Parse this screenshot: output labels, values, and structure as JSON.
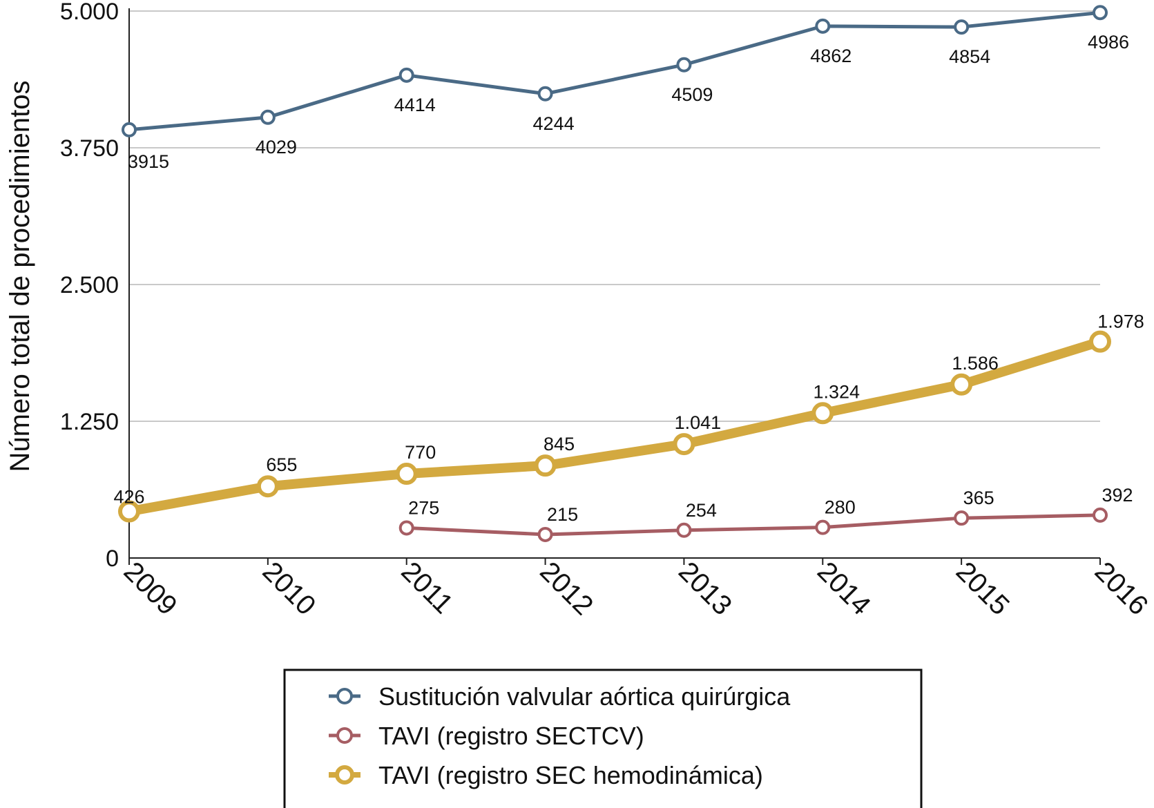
{
  "chart_data": {
    "type": "line",
    "title": "",
    "xlabel": "",
    "ylabel": "Número total de procedimientos",
    "categories": [
      "2009",
      "2010",
      "2011",
      "2012",
      "2013",
      "2014",
      "2015",
      "2016"
    ],
    "ylim": [
      0,
      5000
    ],
    "yticks": [
      0,
      1250,
      2500,
      3750,
      5000
    ],
    "ytick_labels": [
      "0",
      "1.250",
      "2.500",
      "3.750",
      "5.000"
    ],
    "grid": true,
    "legend_position": "bottom-center",
    "series": [
      {
        "name": "Sustitución valvular aórtica quirúrgica",
        "color": "#4a6a86",
        "values": [
          3915,
          4029,
          4414,
          4244,
          4509,
          4862,
          4854,
          4986
        ],
        "labels": [
          "3915",
          "4029",
          "4414",
          "4244",
          "4509",
          "4862",
          "4854",
          "4986"
        ]
      },
      {
        "name": "TAVI (registro SECTCV)",
        "color": "#a65d63",
        "values": [
          null,
          null,
          275,
          215,
          254,
          280,
          365,
          392
        ],
        "labels": [
          null,
          null,
          "275",
          "215",
          "254",
          "280",
          "365",
          "392"
        ]
      },
      {
        "name": "TAVI (registro SEC hemodinámica)",
        "color": "#d3a940",
        "values": [
          426,
          655,
          770,
          845,
          1041,
          1324,
          1586,
          1978
        ],
        "labels": [
          "426",
          "655",
          "770",
          "845",
          "1.041",
          "1.324",
          "1.586",
          "1.978"
        ]
      }
    ]
  }
}
